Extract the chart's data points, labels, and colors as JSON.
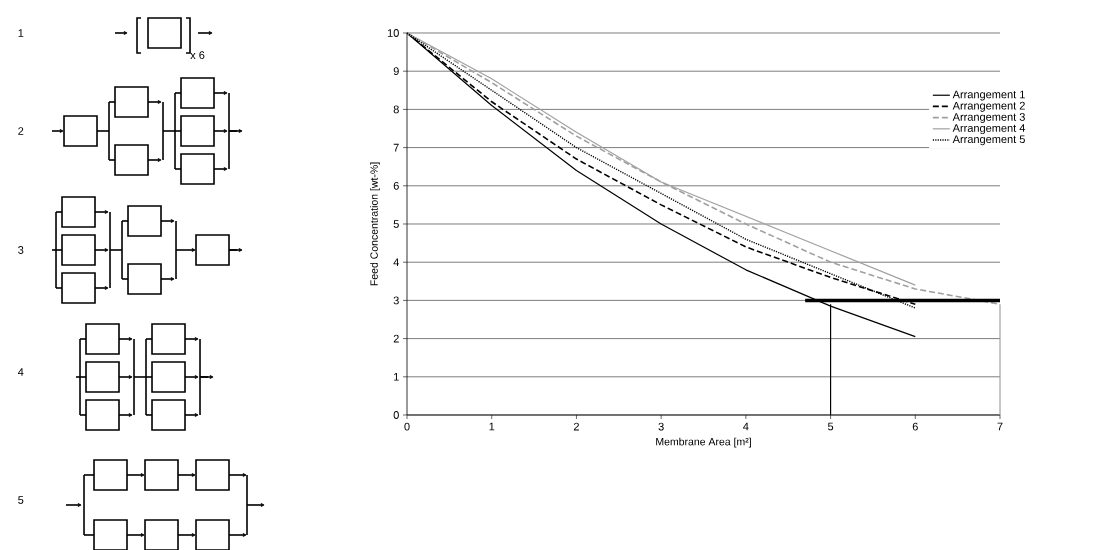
{
  "chart_data": {
    "type": "line",
    "xlabel": "Membrane Area [m²]",
    "ylabel": "Feed Concentration [wt-%]",
    "xlim": [
      0,
      7
    ],
    "ylim": [
      0,
      10
    ],
    "xticks": [
      0,
      1,
      2,
      3,
      4,
      5,
      6,
      7
    ],
    "yticks": [
      0,
      1,
      2,
      3,
      4,
      5,
      6,
      7,
      8,
      9,
      10
    ],
    "grid": "y",
    "legend": "right",
    "marker": "none",
    "x": [
      0,
      1,
      2,
      3,
      4,
      5,
      6
    ],
    "series": [
      {
        "name": "Arrangement 1",
        "color": "#000000",
        "line_style": "solid",
        "values": [
          10,
          8.1,
          6.4,
          5.0,
          3.8,
          2.85,
          2.05
        ]
      },
      {
        "name": "Arrangement 2",
        "color": "#000000",
        "line_style": "dashed",
        "values": [
          10,
          8.2,
          6.7,
          5.5,
          4.4,
          3.6,
          2.9
        ]
      },
      {
        "name": "Arrangement 3",
        "color": "#a0a0a0",
        "line_style": "dashed",
        "x": [
          0,
          1,
          2,
          3,
          4,
          5,
          6,
          7
        ],
        "values": [
          10,
          8.7,
          7.3,
          6.1,
          5.0,
          4.0,
          3.3,
          2.9
        ]
      },
      {
        "name": "Arrangement 4",
        "color": "#a0a0a0",
        "line_style": "solid",
        "values": [
          10,
          8.8,
          7.4,
          6.1,
          5.2,
          4.3,
          3.4
        ]
      },
      {
        "name": "Arrangement 5",
        "color": "#000000",
        "line_style": "dotted",
        "values": [
          10,
          8.5,
          7.0,
          5.8,
          4.6,
          3.7,
          2.8
        ]
      },
      {
        "color": "#000000",
        "line_style": "solid",
        "x": [
          4.7,
          7
        ],
        "values": [
          3,
          3
        ]
      },
      {
        "color": "#000000",
        "line_style": "solid",
        "x": [
          5,
          5
        ],
        "values": [
          0,
          2.9
        ]
      },
      {
        "color": "#a0a0a0",
        "line_style": "solid",
        "x": [
          7,
          7
        ],
        "values": [
          0,
          2.9
        ]
      }
    ],
    "annotations": [
      "1",
      "2",
      "3",
      "4",
      "5",
      "x 6"
    ]
  }
}
